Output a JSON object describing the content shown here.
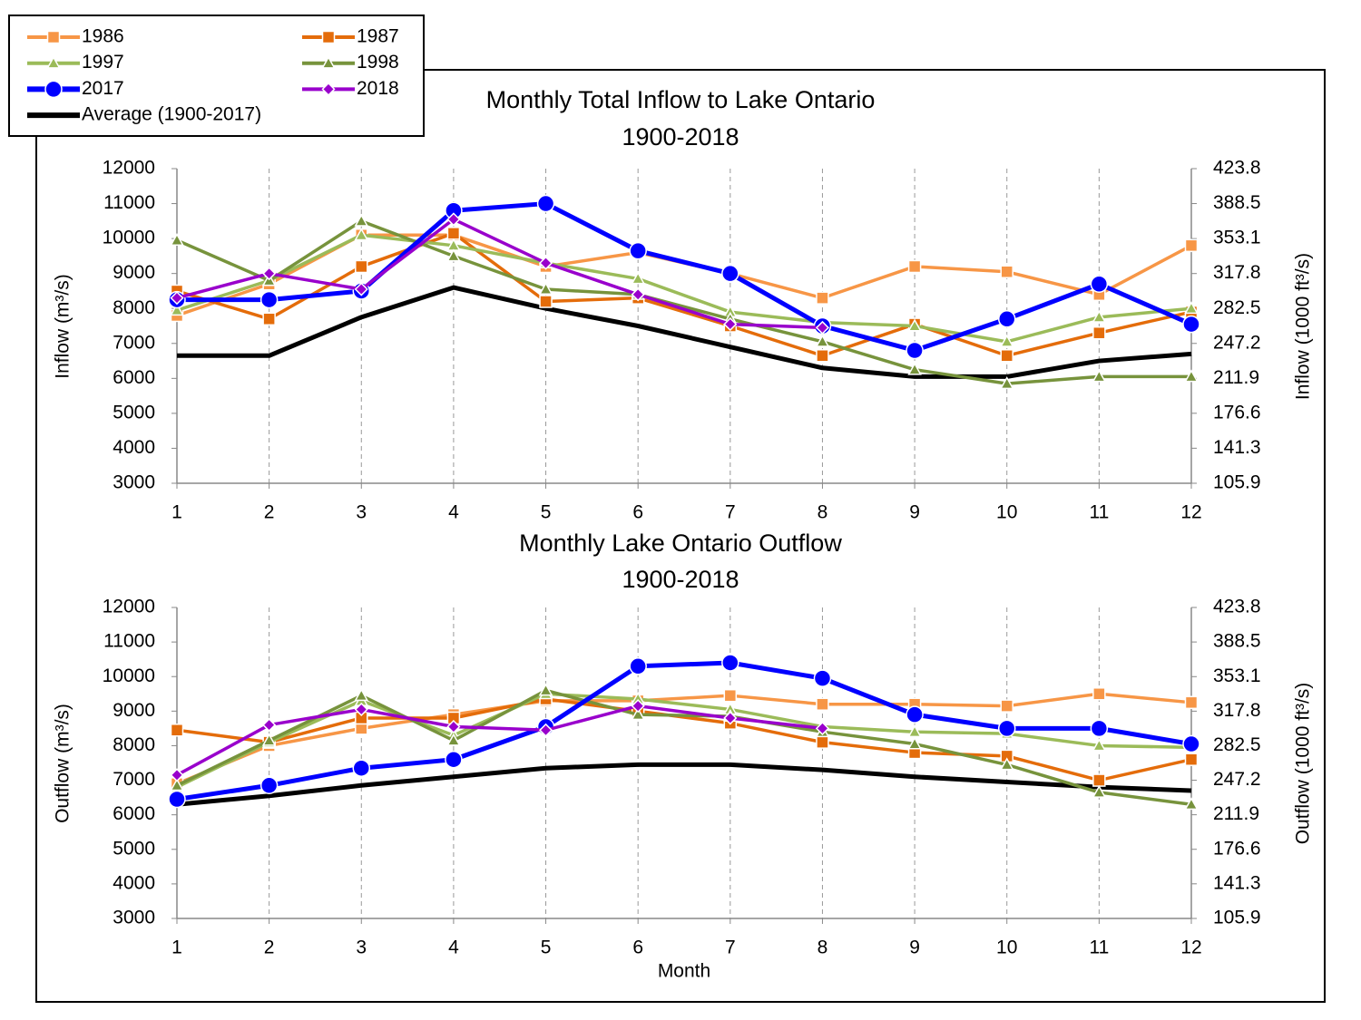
{
  "chart_data": [
    {
      "type": "line",
      "title": "Monthly Total Inflow to Lake Ontario",
      "subtitle": "1900-2018",
      "y_label": "Inflow (m³/s)",
      "y2_label": "Inflow (1000 ft³/s)",
      "x": [
        1,
        2,
        3,
        4,
        5,
        6,
        7,
        8,
        9,
        10,
        11,
        12
      ],
      "xlim": [
        1,
        12
      ],
      "xticks": [
        1,
        2,
        3,
        4,
        5,
        6,
        7,
        8,
        9,
        10,
        11,
        12
      ],
      "ylim": [
        3000,
        12000
      ],
      "yticks": [
        3000,
        4000,
        5000,
        6000,
        7000,
        8000,
        9000,
        10000,
        11000,
        12000
      ],
      "y2lim": [
        105.9,
        423.8
      ],
      "y2ticks": [
        105.9,
        141.3,
        176.6,
        211.9,
        247.2,
        282.5,
        317.8,
        353.1,
        388.5,
        423.8
      ],
      "grid": "x",
      "legend": "upper left",
      "series": [
        {
          "name": "1986",
          "color": "#f79646",
          "marker": "square",
          "values": [
            7800,
            8700,
            10100,
            10100,
            9200,
            9600,
            9000,
            8300,
            9200,
            9050,
            8400,
            9800
          ]
        },
        {
          "name": "1987",
          "color": "#e46c0a",
          "marker": "square",
          "values": [
            8500,
            7700,
            9200,
            10150,
            8200,
            8300,
            7500,
            6650,
            7550,
            6650,
            7300,
            7900
          ]
        },
        {
          "name": "1997",
          "color": "#9bbb59",
          "marker": "triangle",
          "values": [
            7950,
            8800,
            10100,
            9800,
            9300,
            8850,
            7900,
            7600,
            7500,
            7050,
            7750,
            8000
          ]
        },
        {
          "name": "1998",
          "color": "#77933c",
          "marker": "triangle",
          "values": [
            9950,
            8800,
            10500,
            9500,
            8550,
            8400,
            7700,
            7050,
            6250,
            5850,
            6050,
            6050
          ]
        },
        {
          "name": "2017",
          "color": "#0000ff",
          "marker": "circle",
          "values": [
            8250,
            8250,
            8500,
            10800,
            11000,
            9650,
            9000,
            7500,
            6800,
            7700,
            8700,
            7550
          ]
        },
        {
          "name": "2018",
          "color": "#9900cc",
          "marker": "diamond",
          "values": [
            8300,
            9000,
            8550,
            10550,
            9300,
            8400,
            7550,
            7450,
            null,
            null,
            null,
            null
          ]
        },
        {
          "name": "Average (1900-2017)",
          "color": "#000000",
          "marker": "none",
          "values": [
            6650,
            6650,
            7750,
            8600,
            8000,
            7500,
            6900,
            6300,
            6050,
            6050,
            6500,
            6700
          ]
        }
      ]
    },
    {
      "type": "line",
      "title": "Monthly Lake Ontario Outflow",
      "subtitle": "1900-2018",
      "x_label": "Month",
      "y_label": "Outflow (m³/s)",
      "y2_label": "Outflow (1000 ft³/s)",
      "x": [
        1,
        2,
        3,
        4,
        5,
        6,
        7,
        8,
        9,
        10,
        11,
        12
      ],
      "xlim": [
        1,
        12
      ],
      "xticks": [
        1,
        2,
        3,
        4,
        5,
        6,
        7,
        8,
        9,
        10,
        11,
        12
      ],
      "ylim": [
        3000,
        12000
      ],
      "yticks": [
        3000,
        4000,
        5000,
        6000,
        7000,
        8000,
        9000,
        10000,
        11000,
        12000
      ],
      "y2lim": [
        105.9,
        423.8
      ],
      "y2ticks": [
        105.9,
        141.3,
        176.6,
        211.9,
        247.2,
        282.5,
        317.8,
        353.1,
        388.5,
        423.8
      ],
      "grid": "x",
      "series": [
        {
          "color": "#f79646",
          "marker": "square",
          "values": [
            6900,
            8000,
            8500,
            8900,
            9300,
            9300,
            9450,
            9200,
            9200,
            9150,
            9500,
            9250
          ]
        },
        {
          "color": "#e46c0a",
          "marker": "square",
          "values": [
            8450,
            8100,
            8800,
            8800,
            9350,
            9000,
            8650,
            8100,
            7800,
            7700,
            7000,
            7600
          ]
        },
        {
          "color": "#9bbb59",
          "marker": "triangle",
          "values": [
            6800,
            8100,
            9300,
            8300,
            9500,
            9350,
            9050,
            8550,
            8400,
            8350,
            8000,
            7950
          ]
        },
        {
          "color": "#77933c",
          "marker": "triangle",
          "values": [
            6850,
            8150,
            9450,
            8150,
            9600,
            8900,
            8850,
            8400,
            8050,
            7450,
            6650,
            6300
          ]
        },
        {
          "color": "#0000ff",
          "marker": "circle",
          "values": [
            6450,
            6850,
            7350,
            7600,
            8550,
            10300,
            10400,
            9950,
            8900,
            8500,
            8500,
            8050
          ]
        },
        {
          "color": "#9900cc",
          "marker": "diamond",
          "values": [
            7150,
            8600,
            9050,
            8550,
            8450,
            9150,
            8800,
            8500,
            null,
            null,
            null,
            null
          ]
        },
        {
          "color": "#000000",
          "marker": "none",
          "values": [
            6300,
            6550,
            6850,
            7100,
            7350,
            7450,
            7450,
            7300,
            7100,
            6950,
            6800,
            6700
          ]
        }
      ]
    }
  ]
}
